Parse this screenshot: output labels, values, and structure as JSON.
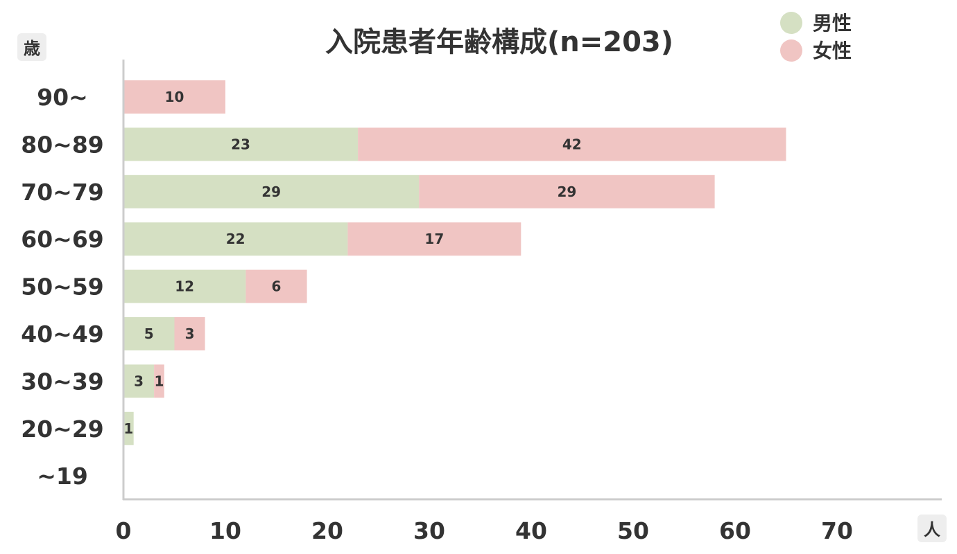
{
  "chart_data": {
    "type": "bar",
    "orientation": "horizontal",
    "stacked": true,
    "title": "入院患者年齢構成(n=203)",
    "y_unit": "歳",
    "x_unit": "人",
    "categories": [
      "90~",
      "80~89",
      "70~79",
      "60~69",
      "50~59",
      "40~49",
      "30~39",
      "20~29",
      "~19"
    ],
    "series": [
      {
        "name": "男性",
        "color": "#d5e0c3",
        "values": [
          0,
          23,
          29,
          22,
          12,
          5,
          3,
          1,
          0
        ]
      },
      {
        "name": "女性",
        "color": "#f0c5c3",
        "values": [
          10,
          42,
          29,
          17,
          6,
          3,
          1,
          0,
          0
        ]
      }
    ],
    "xlim": [
      0,
      80
    ],
    "xticks": [
      0,
      10,
      20,
      30,
      40,
      50,
      60,
      70
    ],
    "grid": false,
    "legend_position": "top-right"
  }
}
